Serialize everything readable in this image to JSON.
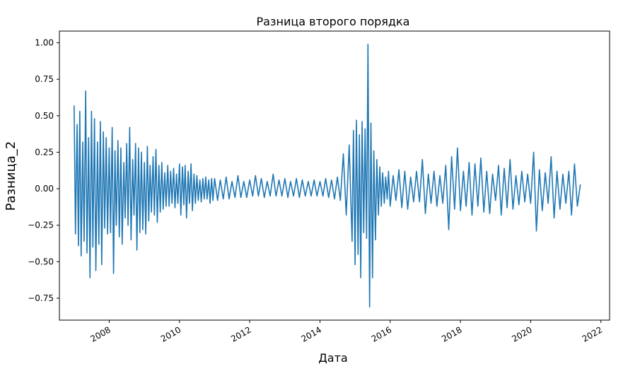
{
  "chart_data": {
    "type": "line",
    "title": "Разница второго порядка",
    "xlabel": "Дата",
    "ylabel": "Разница_2",
    "xlim": [
      "2006-08-01",
      "2022-04-01"
    ],
    "ylim": [
      -0.9,
      1.08
    ],
    "grid": false,
    "legend": "none",
    "line_color": "#1f77b4",
    "x_ticks": [
      {
        "value": "2008-01-01",
        "label": "2008"
      },
      {
        "value": "2010-01-01",
        "label": "2010"
      },
      {
        "value": "2012-01-01",
        "label": "2012"
      },
      {
        "value": "2014-01-01",
        "label": "2014"
      },
      {
        "value": "2016-01-01",
        "label": "2016"
      },
      {
        "value": "2018-01-01",
        "label": "2018"
      },
      {
        "value": "2020-01-01",
        "label": "2020"
      },
      {
        "value": "2022-01-01",
        "label": "2022"
      }
    ],
    "y_ticks": [
      {
        "value": 1.0,
        "label": "1.00"
      },
      {
        "value": 0.75,
        "label": "0.75"
      },
      {
        "value": 0.5,
        "label": "0.50"
      },
      {
        "value": 0.25,
        "label": "0.25"
      },
      {
        "value": 0.0,
        "label": "0.00"
      },
      {
        "value": -0.25,
        "label": "−0.25"
      },
      {
        "value": -0.5,
        "label": "−0.50"
      },
      {
        "value": -0.75,
        "label": "−0.75"
      }
    ],
    "series": [
      {
        "x": [
          "2007-01-01",
          "2007-01-15",
          "2007-02-01",
          "2007-02-15",
          "2007-03-01",
          "2007-03-15",
          "2007-04-01",
          "2007-04-15",
          "2007-05-01",
          "2007-05-15",
          "2007-06-01",
          "2007-06-15",
          "2007-07-01",
          "2007-07-15",
          "2007-08-01",
          "2007-08-15",
          "2007-09-01",
          "2007-09-15",
          "2007-10-01",
          "2007-10-15",
          "2007-11-01",
          "2007-11-15",
          "2007-12-01",
          "2007-12-15",
          "2008-01-01",
          "2008-01-15",
          "2008-02-01",
          "2008-02-15",
          "2008-03-01",
          "2008-03-15",
          "2008-04-01",
          "2008-04-15",
          "2008-05-01",
          "2008-05-15",
          "2008-06-01",
          "2008-06-15",
          "2008-07-01",
          "2008-07-15",
          "2008-08-01",
          "2008-08-15",
          "2008-09-01",
          "2008-09-15",
          "2008-10-01",
          "2008-10-15",
          "2008-11-01",
          "2008-11-15",
          "2008-12-01",
          "2008-12-15",
          "2009-01-01",
          "2009-01-15",
          "2009-02-01",
          "2009-02-15",
          "2009-03-01",
          "2009-03-15",
          "2009-04-01",
          "2009-04-15",
          "2009-05-01",
          "2009-05-15",
          "2009-06-01",
          "2009-06-15",
          "2009-07-01",
          "2009-07-15",
          "2009-08-01",
          "2009-08-15",
          "2009-09-01",
          "2009-09-15",
          "2009-10-01",
          "2009-10-15",
          "2009-11-01",
          "2009-11-15",
          "2009-12-01",
          "2009-12-15",
          "2010-01-01",
          "2010-01-15",
          "2010-02-01",
          "2010-02-15",
          "2010-03-01",
          "2010-03-15",
          "2010-04-01",
          "2010-04-15",
          "2010-05-01",
          "2010-05-15",
          "2010-06-01",
          "2010-06-15",
          "2010-07-01",
          "2010-07-15",
          "2010-08-01",
          "2010-08-15",
          "2010-09-01",
          "2010-09-15",
          "2010-10-01",
          "2010-10-15",
          "2010-11-01",
          "2010-11-15",
          "2010-12-01",
          "2010-12-15",
          "2011-01-01",
          "2011-02-01",
          "2011-03-01",
          "2011-04-01",
          "2011-05-01",
          "2011-06-01",
          "2011-07-01",
          "2011-08-01",
          "2011-09-01",
          "2011-10-01",
          "2011-11-01",
          "2011-12-01",
          "2012-01-01",
          "2012-02-01",
          "2012-03-01",
          "2012-04-01",
          "2012-05-01",
          "2012-06-01",
          "2012-07-01",
          "2012-08-01",
          "2012-09-01",
          "2012-10-01",
          "2012-11-01",
          "2012-12-01",
          "2013-01-01",
          "2013-02-01",
          "2013-03-01",
          "2013-04-01",
          "2013-05-01",
          "2013-06-01",
          "2013-07-01",
          "2013-08-01",
          "2013-09-01",
          "2013-10-01",
          "2013-11-01",
          "2013-12-01",
          "2014-01-01",
          "2014-02-01",
          "2014-03-01",
          "2014-04-01",
          "2014-05-01",
          "2014-06-01",
          "2014-07-01",
          "2014-08-01",
          "2014-09-01",
          "2014-10-01",
          "2014-11-01",
          "2014-12-01",
          "2014-12-15",
          "2015-01-01",
          "2015-01-15",
          "2015-02-01",
          "2015-02-15",
          "2015-03-01",
          "2015-03-15",
          "2015-04-01",
          "2015-04-15",
          "2015-05-01",
          "2015-05-15",
          "2015-06-01",
          "2015-06-15",
          "2015-07-01",
          "2015-07-15",
          "2015-08-01",
          "2015-08-15",
          "2015-09-01",
          "2015-09-15",
          "2015-10-01",
          "2015-10-15",
          "2015-11-01",
          "2015-11-15",
          "2015-12-01",
          "2015-12-15",
          "2016-01-01",
          "2016-02-01",
          "2016-03-01",
          "2016-04-01",
          "2016-05-01",
          "2016-06-01",
          "2016-07-01",
          "2016-08-01",
          "2016-09-01",
          "2016-10-01",
          "2016-11-01",
          "2016-12-01",
          "2017-01-01",
          "2017-02-01",
          "2017-03-01",
          "2017-04-01",
          "2017-05-01",
          "2017-06-01",
          "2017-07-01",
          "2017-08-01",
          "2017-09-01",
          "2017-10-01",
          "2017-11-01",
          "2017-12-01",
          "2018-01-01",
          "2018-02-01",
          "2018-03-01",
          "2018-04-01",
          "2018-05-01",
          "2018-06-01",
          "2018-07-01",
          "2018-08-01",
          "2018-09-01",
          "2018-10-01",
          "2018-11-01",
          "2018-12-01",
          "2019-01-01",
          "2019-02-01",
          "2019-03-01",
          "2019-04-01",
          "2019-05-01",
          "2019-06-01",
          "2019-07-01",
          "2019-08-01",
          "2019-09-01",
          "2019-10-01",
          "2019-11-01",
          "2019-12-01",
          "2020-01-01",
          "2020-02-01",
          "2020-03-01",
          "2020-04-01",
          "2020-05-01",
          "2020-06-01",
          "2020-07-01",
          "2020-08-01",
          "2020-09-01",
          "2020-10-01",
          "2020-11-01",
          "2020-12-01",
          "2021-01-01",
          "2021-02-01",
          "2021-03-01",
          "2021-04-01",
          "2021-05-01",
          "2021-06-01"
        ],
        "values": [
          0.57,
          -0.31,
          0.44,
          -0.39,
          0.53,
          -0.46,
          0.32,
          -0.36,
          0.67,
          -0.44,
          0.35,
          -0.61,
          0.53,
          -0.4,
          0.48,
          -0.56,
          0.32,
          -0.38,
          0.46,
          -0.52,
          0.39,
          -0.27,
          0.35,
          -0.31,
          0.28,
          -0.3,
          0.42,
          -0.58,
          0.26,
          -0.25,
          0.33,
          -0.33,
          0.28,
          -0.38,
          0.18,
          -0.2,
          0.31,
          -0.25,
          0.42,
          -0.35,
          0.2,
          -0.18,
          0.31,
          -0.42,
          0.28,
          -0.3,
          0.25,
          -0.28,
          0.18,
          -0.31,
          0.29,
          -0.22,
          0.16,
          -0.16,
          0.22,
          -0.18,
          0.27,
          -0.23,
          0.16,
          -0.16,
          0.18,
          -0.14,
          0.11,
          -0.12,
          0.16,
          -0.12,
          0.12,
          -0.1,
          0.14,
          -0.13,
          0.1,
          -0.1,
          0.17,
          -0.18,
          0.15,
          -0.11,
          0.16,
          -0.2,
          0.12,
          -0.1,
          0.17,
          -0.15,
          0.1,
          -0.1,
          0.09,
          -0.08,
          0.06,
          -0.09,
          0.07,
          -0.07,
          0.08,
          -0.07,
          0.06,
          -0.1,
          0.07,
          -0.08,
          0.07,
          -0.08,
          0.06,
          -0.07,
          0.08,
          -0.07,
          0.05,
          -0.06,
          0.09,
          -0.06,
          0.05,
          -0.06,
          0.06,
          -0.05,
          0.09,
          -0.05,
          0.07,
          -0.06,
          0.05,
          -0.05,
          0.1,
          -0.05,
          0.06,
          -0.05,
          0.07,
          -0.06,
          0.05,
          -0.05,
          0.07,
          -0.06,
          0.06,
          -0.05,
          0.05,
          -0.05,
          0.06,
          -0.05,
          0.05,
          -0.05,
          0.07,
          -0.06,
          0.06,
          -0.07,
          0.08,
          -0.08,
          0.24,
          -0.18,
          0.3,
          -0.36,
          0.4,
          -0.52,
          0.47,
          -0.45,
          0.37,
          -0.61,
          0.46,
          -0.3,
          0.41,
          -0.34,
          0.99,
          -0.81,
          0.45,
          -0.61,
          0.26,
          -0.35,
          0.2,
          -0.18,
          0.15,
          -0.12,
          0.11,
          -0.1,
          0.08,
          -0.07,
          0.12,
          -0.12,
          0.09,
          -0.08,
          0.13,
          -0.13,
          0.12,
          -0.14,
          0.08,
          -0.09,
          0.12,
          -0.09,
          0.2,
          -0.17,
          0.1,
          -0.1,
          0.12,
          -0.12,
          0.09,
          -0.1,
          0.16,
          -0.28,
          0.22,
          -0.14,
          0.28,
          -0.15,
          0.12,
          -0.12,
          0.18,
          -0.18,
          0.17,
          -0.12,
          0.21,
          -0.16,
          0.12,
          -0.17,
          0.1,
          -0.08,
          0.16,
          -0.18,
          0.14,
          -0.13,
          0.2,
          -0.14,
          0.09,
          -0.11,
          0.12,
          -0.09,
          0.1,
          -0.1,
          0.25,
          -0.29,
          0.13,
          -0.15,
          0.11,
          -0.1,
          0.22,
          -0.2,
          0.12,
          -0.14,
          0.1,
          -0.1,
          0.12,
          -0.18,
          0.17,
          -0.12,
          0.03
        ]
      }
    ]
  }
}
